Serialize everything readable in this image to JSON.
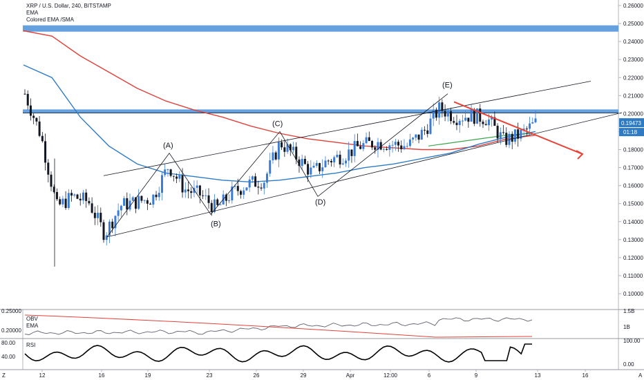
{
  "header": {
    "title": "XRP / U.S. Dollar, 240, BITSTAMP",
    "indicator_1": "EMA",
    "indicator_2": "Colored EMA /SMA"
  },
  "price_axis": {
    "ticks": [
      "0.26000",
      "0.25000",
      "0.24000",
      "0.23000",
      "0.22000",
      "0.21000",
      "0.20000",
      "0.19000",
      "0.18000",
      "0.17000",
      "0.16000",
      "0.15000",
      "0.14000",
      "0.13000",
      "0.12000",
      "0.11000",
      "0.10000"
    ],
    "last_price": "0.19473",
    "countdown": "01:18"
  },
  "time_axis": {
    "ticks": [
      "12",
      "16",
      "19",
      "23",
      "26",
      "29",
      "Apr",
      "12:00",
      "6",
      "9",
      "13",
      "16"
    ],
    "corner_left": "Z",
    "corner_right": "A"
  },
  "obv_panel": {
    "label_1": "OBV",
    "label_2": "EMA",
    "left_ticks": [
      "0.25000",
      "0.20000"
    ],
    "right_ticks": [
      "1.5B",
      "1B"
    ]
  },
  "rsi_panel": {
    "label": "RSI",
    "left_ticks": [
      "80.00",
      "40.00"
    ],
    "right_ticks": [
      "100.00",
      "0.00"
    ]
  },
  "wave_labels": [
    "(A)",
    "(B)",
    "(C)",
    "(D)",
    "(E)"
  ],
  "colors": {
    "bull": "#3a7bd5",
    "bear": "#131722",
    "ema_red": "#e0403a",
    "ema_blue": "#2e7bc4",
    "ema_green": "#3aa64a",
    "zone_blue": "#4a90d9",
    "arrow_red": "#e8443a",
    "tag_blue": "#2e7bc4"
  },
  "chart_data": {
    "type": "candlestick",
    "title": "XRP / U.S. Dollar, 240, BITSTAMP",
    "y_range": [
      0.1,
      0.26
    ],
    "x_ticks": [
      "12",
      "16",
      "19",
      "23",
      "26",
      "29",
      "Apr",
      "12:00",
      "6",
      "9",
      "13",
      "16"
    ],
    "last_price": 0.19473,
    "horizontal_zones": [
      {
        "from": 0.2455,
        "to": 0.249
      },
      {
        "from": 0.2003,
        "to": 0.2023
      }
    ],
    "close_path": [
      {
        "x": "11",
        "y": 0.211
      },
      {
        "x": "12",
        "y": 0.188
      },
      {
        "x": "13",
        "y": 0.148
      },
      {
        "x": "14",
        "y": 0.154
      },
      {
        "x": "15",
        "y": 0.151
      },
      {
        "x": "16",
        "y": 0.133
      },
      {
        "x": "17",
        "y": 0.149
      },
      {
        "x": "18",
        "y": 0.151
      },
      {
        "x": "19",
        "y": 0.153
      },
      {
        "x": "20",
        "y": 0.171
      },
      {
        "x": "21",
        "y": 0.158
      },
      {
        "x": "22",
        "y": 0.155
      },
      {
        "x": "23",
        "y": 0.147
      },
      {
        "x": "24",
        "y": 0.156
      },
      {
        "x": "25",
        "y": 0.161
      },
      {
        "x": "26",
        "y": 0.163
      },
      {
        "x": "27",
        "y": 0.184
      },
      {
        "x": "28",
        "y": 0.176
      },
      {
        "x": "29",
        "y": 0.167
      },
      {
        "x": "30",
        "y": 0.174
      },
      {
        "x": "Apr",
        "y": 0.177
      },
      {
        "x": "2",
        "y": 0.182
      },
      {
        "x": "3",
        "y": 0.184
      },
      {
        "x": "4",
        "y": 0.183
      },
      {
        "x": "5",
        "y": 0.182
      },
      {
        "x": "6",
        "y": 0.19
      },
      {
        "x": "7",
        "y": 0.203
      },
      {
        "x": "8",
        "y": 0.198
      },
      {
        "x": "9",
        "y": 0.199
      },
      {
        "x": "10",
        "y": 0.197
      },
      {
        "x": "11",
        "y": 0.185
      },
      {
        "x": "12",
        "y": 0.188
      },
      {
        "x": "13",
        "y": 0.1947
      }
    ],
    "ema_red": [
      0.246,
      0.243,
      0.232,
      0.223,
      0.214,
      0.207,
      0.202,
      0.198,
      0.193,
      0.189,
      0.186,
      0.184,
      0.182,
      0.181,
      0.18,
      0.18,
      0.182,
      0.186,
      0.188
    ],
    "ema_blue": [
      0.227,
      0.22,
      0.198,
      0.182,
      0.172,
      0.167,
      0.165,
      0.163,
      0.162,
      0.163,
      0.165,
      0.167,
      0.17,
      0.172,
      0.175,
      0.178,
      0.183,
      0.187,
      0.19
    ],
    "ema_green": [
      0.182,
      0.184,
      0.186,
      0.188,
      0.189
    ],
    "pattern_labels": [
      "(A)",
      "(B)",
      "(C)",
      "(D)",
      "(E)"
    ],
    "pattern_points": [
      {
        "label": "(A)",
        "y": 0.178
      },
      {
        "label": "(B)",
        "y": 0.144
      },
      {
        "label": "(C)",
        "y": 0.19
      },
      {
        "label": "(D)",
        "y": 0.154
      },
      {
        "label": "(E)",
        "y": 0.211
      }
    ],
    "obv": {
      "left_range": [
        0.2,
        0.25
      ],
      "right_ticks": [
        "1.5B",
        "1B"
      ]
    },
    "rsi": {
      "range": [
        0,
        100
      ]
    }
  }
}
